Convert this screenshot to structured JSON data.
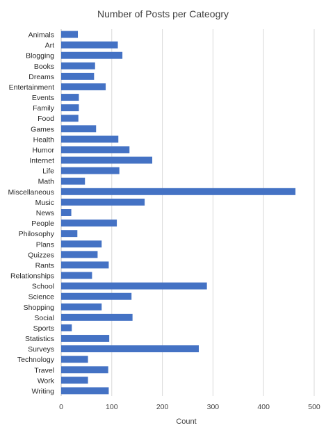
{
  "chart_data": {
    "type": "bar",
    "orientation": "horizontal",
    "title": "Number of Posts per Cateogry",
    "xlabel": "Count",
    "ylabel": "",
    "xlim": [
      0,
      500
    ],
    "xticks": [
      0,
      100,
      200,
      300,
      400,
      500
    ],
    "grid": true,
    "legend": "none",
    "bar_color": "#4472C4",
    "grid_color": "#d9d9d9",
    "categories": [
      "Animals",
      "Art",
      "Blogging",
      "Books",
      "Dreams",
      "Entertainment",
      "Events",
      "Family",
      "Food",
      "Games",
      "Health",
      "Humor",
      "Internet",
      "Life",
      "Math",
      "Miscellaneous",
      "Music",
      "News",
      "People",
      "Philosophy",
      "Plans",
      "Quizzes",
      "Rants",
      "Relationships",
      "School",
      "Science",
      "Shopping",
      "Social",
      "Sports",
      "Statistics",
      "Surveys",
      "Technology",
      "Travel",
      "Work",
      "Writing"
    ],
    "values": [
      33,
      112,
      121,
      67,
      65,
      88,
      35,
      35,
      34,
      69,
      113,
      135,
      180,
      115,
      47,
      463,
      165,
      20,
      110,
      32,
      80,
      72,
      94,
      61,
      288,
      139,
      80,
      141,
      21,
      95,
      272,
      53,
      93,
      53,
      94
    ]
  }
}
